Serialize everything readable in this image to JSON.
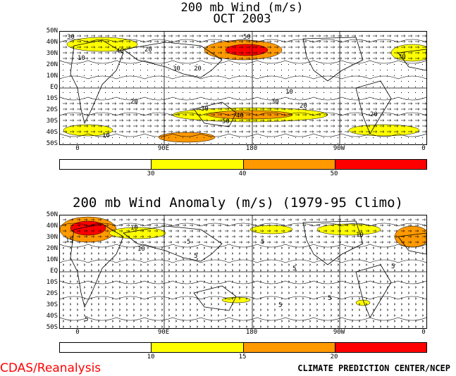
{
  "top_panel": {
    "title_line1": "200 mb Wind (m/s)",
    "title_line2": "OCT 2003",
    "lat_labels": [
      "50N",
      "40N",
      "30N",
      "20N",
      "10N",
      "EQ",
      "10S",
      "20S",
      "30S",
      "40S",
      "50S"
    ],
    "lon_labels": [
      "0",
      "90E",
      "180",
      "90W",
      "0"
    ],
    "colorbar": {
      "thresholds": [
        "30",
        "40",
        "50"
      ],
      "colors": [
        "#ffffff",
        "#ffff00",
        "#ff9900",
        "#ff0000"
      ]
    },
    "contour_labels": [
      "30",
      "40",
      "50",
      "20",
      "10",
      "30",
      "20",
      "10",
      "20",
      "30",
      "40",
      "50",
      "30",
      "20",
      "10",
      "30",
      "20"
    ]
  },
  "bottom_panel": {
    "title": "200 mb Wind Anomaly (m/s) (1979-95 Climo)",
    "lat_labels": [
      "50N",
      "40N",
      "30N",
      "20N",
      "10N",
      "EQ",
      "10S",
      "20S",
      "30S",
      "40S",
      "50S"
    ],
    "lon_labels": [
      "0",
      "90E",
      "180",
      "90W",
      "0"
    ],
    "colorbar": {
      "thresholds": [
        "10",
        "15",
        "20"
      ],
      "colors": [
        "#ffffff",
        "#ffff00",
        "#ff9900",
        "#ff0000"
      ]
    },
    "contour_labels": [
      "10",
      "5",
      "15",
      "10",
      "5",
      "5",
      "5",
      "10",
      "5",
      "5",
      "5",
      "5"
    ]
  },
  "footer": {
    "left": "CDAS/Reanalysis",
    "right": "CLIMATE PREDICTION CENTER/NCEP"
  }
}
